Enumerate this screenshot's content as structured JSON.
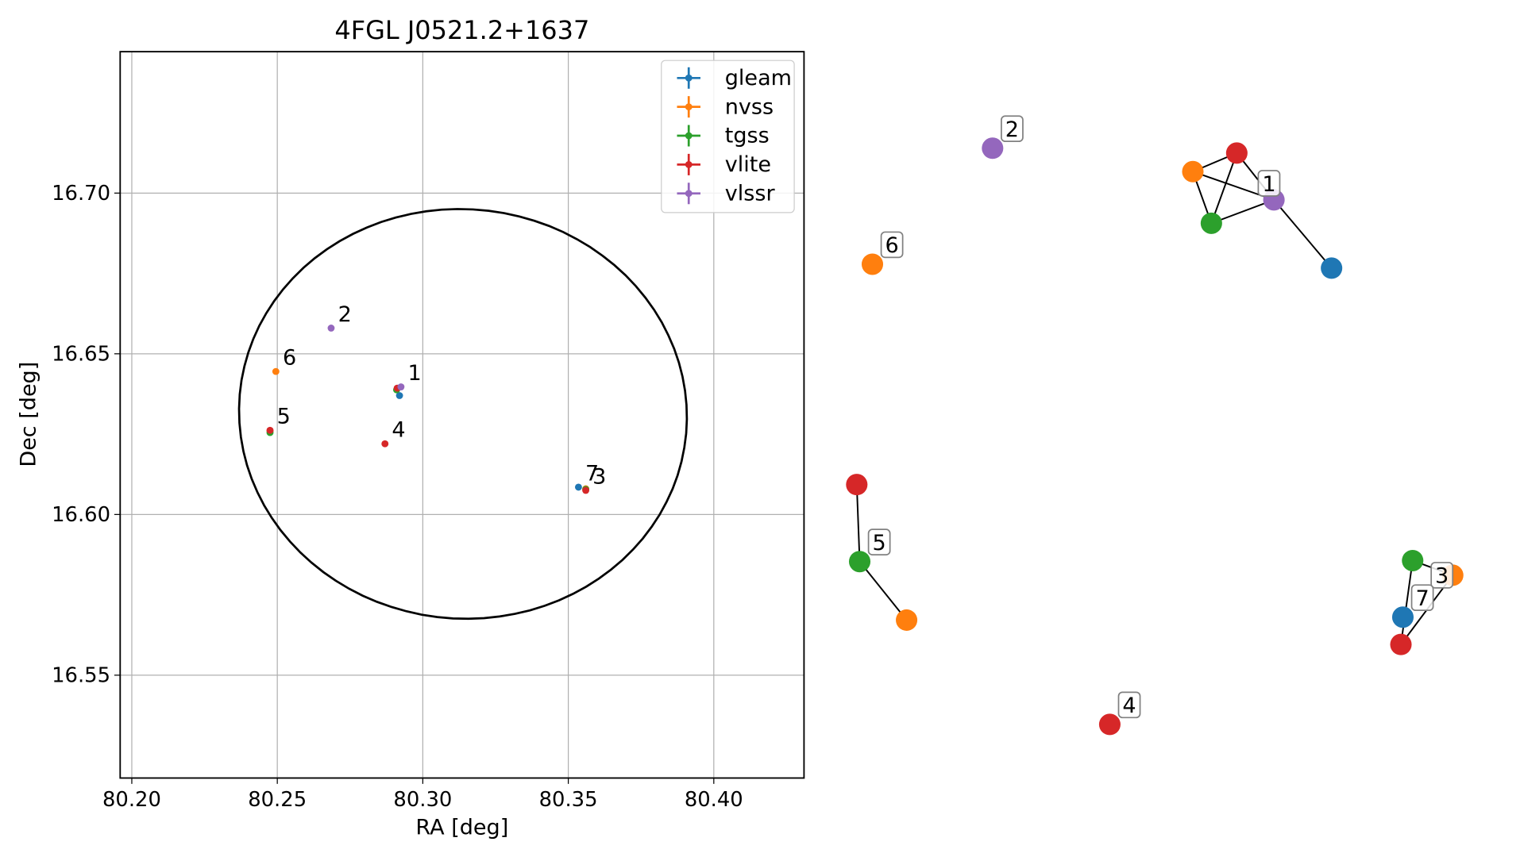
{
  "chart_data": [
    {
      "type": "scatter",
      "title": "4FGL J0521.2+1637",
      "xlabel": "RA [deg]",
      "ylabel": "Dec [deg]",
      "xlim": [
        80.196,
        80.431
      ],
      "ylim": [
        16.518,
        16.744
      ],
      "xticks": [
        80.2,
        80.25,
        80.3,
        80.35,
        80.4
      ],
      "xtick_labels": [
        "80.20",
        "80.25",
        "80.30",
        "80.35",
        "80.40"
      ],
      "yticks": [
        16.55,
        16.6,
        16.65,
        16.7
      ],
      "ytick_labels": [
        "16.55",
        "16.60",
        "16.65",
        "16.70"
      ],
      "grid": true,
      "legend_position": "top-right",
      "colors": {
        "gleam": "#1f77b4",
        "nvss": "#ff7f0e",
        "tgss": "#2ca02c",
        "vlite": "#d62728",
        "vlssr": "#9467bd"
      },
      "series": [
        {
          "name": "gleam",
          "color": "#1f77b4",
          "points": [
            {
              "x": 80.292,
              "y": 16.637
            },
            {
              "x": 80.3535,
              "y": 16.6085
            }
          ]
        },
        {
          "name": "nvss",
          "color": "#ff7f0e",
          "points": [
            {
              "x": 80.2495,
              "y": 16.6445
            },
            {
              "x": 80.2475,
              "y": 16.626
            },
            {
              "x": 80.356,
              "y": 16.608
            }
          ]
        },
        {
          "name": "tgss",
          "color": "#2ca02c",
          "points": [
            {
              "x": 80.2475,
              "y": 16.6255
            },
            {
              "x": 80.291,
              "y": 16.6388
            },
            {
              "x": 80.356,
              "y": 16.6078
            }
          ]
        },
        {
          "name": "vlite",
          "color": "#d62728",
          "points": [
            {
              "x": 80.2912,
              "y": 16.6393
            },
            {
              "x": 80.287,
              "y": 16.622
            },
            {
              "x": 80.2475,
              "y": 16.6262
            },
            {
              "x": 80.356,
              "y": 16.6075
            }
          ]
        },
        {
          "name": "vlssr",
          "color": "#9467bd",
          "points": [
            {
              "x": 80.2925,
              "y": 16.6397
            },
            {
              "x": 80.2685,
              "y": 16.658
            }
          ]
        }
      ],
      "annotations": [
        {
          "text": "1",
          "x": 80.2925,
          "y": 16.6397
        },
        {
          "text": "2",
          "x": 80.2685,
          "y": 16.658
        },
        {
          "text": "3",
          "x": 80.356,
          "y": 16.6075
        },
        {
          "text": "4",
          "x": 80.287,
          "y": 16.622
        },
        {
          "text": "5",
          "x": 80.2475,
          "y": 16.6262
        },
        {
          "text": "6",
          "x": 80.2495,
          "y": 16.6445
        },
        {
          "text": "7",
          "x": 80.3535,
          "y": 16.6085
        }
      ],
      "ellipse": {
        "center": {
          "x": 80.3138,
          "y": 16.6313
        },
        "semi_axes": {
          "ra": 0.077,
          "dec": 0.0637
        },
        "tilt_deg": 5,
        "color": "#000000"
      }
    },
    {
      "type": "network",
      "colors": {
        "gleam": "#1f77b4",
        "nvss": "#ff7f0e",
        "tgss": "#2ca02c",
        "vlite": "#d62728",
        "vlssr": "#9467bd"
      },
      "clusters": [
        {
          "label": "1",
          "nodes": [
            {
              "survey": "vlite",
              "dx": 1266,
              "dy": 157
            },
            {
              "survey": "nvss",
              "dx": 1221,
              "dy": 176
            },
            {
              "survey": "tgss",
              "dx": 1240,
              "dy": 229
            },
            {
              "survey": "vlssr",
              "dx": 1304,
              "dy": 205
            },
            {
              "survey": "gleam",
              "dx": 1363,
              "dy": 275
            }
          ],
          "edges": [
            [
              0,
              1
            ],
            [
              0,
              2
            ],
            [
              0,
              3
            ],
            [
              1,
              2
            ],
            [
              1,
              3
            ],
            [
              2,
              3
            ],
            [
              3,
              4
            ]
          ]
        },
        {
          "label": "2",
          "nodes": [
            {
              "survey": "vlssr",
              "dx": 1016,
              "dy": 152
            }
          ],
          "edges": []
        },
        {
          "label": "6",
          "nodes": [
            {
              "survey": "nvss",
              "dx": 893,
              "dy": 271
            }
          ],
          "edges": []
        },
        {
          "label": "5",
          "nodes": [
            {
              "survey": "vlite",
              "dx": 877,
              "dy": 497
            },
            {
              "survey": "tgss",
              "dx": 880,
              "dy": 576
            },
            {
              "survey": "nvss",
              "dx": 928,
              "dy": 636
            }
          ],
          "edges": [
            [
              0,
              1
            ],
            [
              1,
              2
            ]
          ]
        },
        {
          "label": "4",
          "nodes": [
            {
              "survey": "vlite",
              "dx": 1136,
              "dy": 743
            }
          ],
          "edges": []
        },
        {
          "label": "3",
          "nodes": [
            {
              "survey": "tgss",
              "dx": 1446,
              "dy": 575
            },
            {
              "survey": "nvss",
              "dx": 1487,
              "dy": 590
            },
            {
              "survey": "vlite",
              "dx": 1434,
              "dy": 661
            }
          ],
          "edges": [
            [
              0,
              1
            ],
            [
              0,
              2
            ],
            [
              1,
              2
            ]
          ]
        },
        {
          "label": "7",
          "nodes": [
            {
              "survey": "gleam",
              "dx": 1436,
              "dy": 633
            }
          ],
          "edges": []
        }
      ]
    }
  ]
}
